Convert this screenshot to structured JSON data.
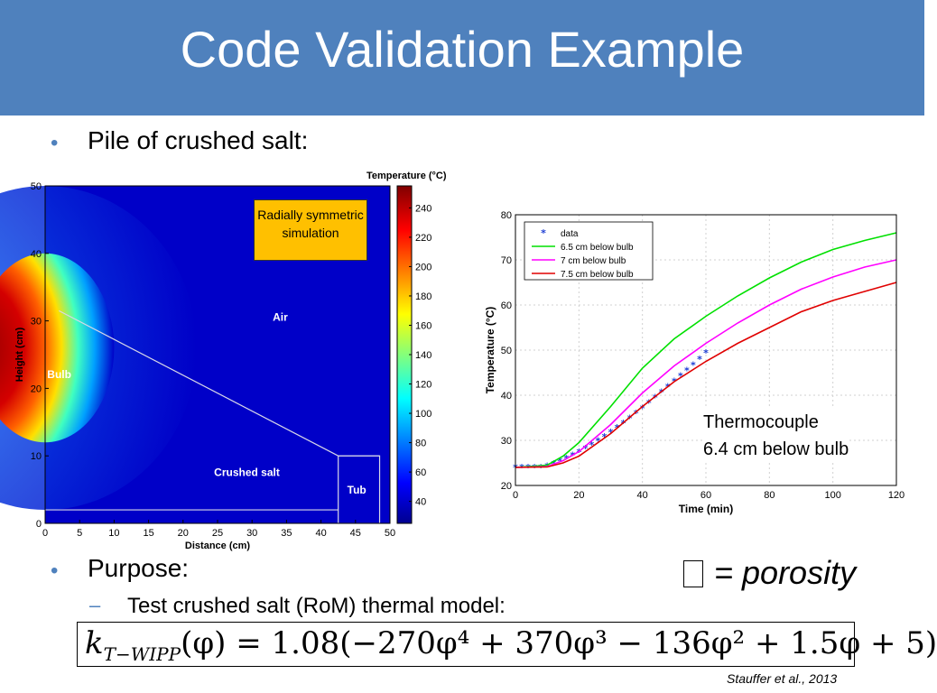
{
  "slide": {
    "title": "Code Validation Example",
    "bullet1": "Pile of crushed salt:",
    "bullet2": "Purpose:",
    "sub_bullet": "Test crushed salt (RoM) thermal model:",
    "sub_dash": "–",
    "bullet_glyph": "•",
    "porosity_note": "= porosity",
    "formula": {
      "lhs": "k",
      "lhs_sub": "T−WIPP",
      "text": "(φ) = 1.08(−270φ⁴ + 370φ³ − 136φ² + 1.5φ + 5)"
    },
    "citation": "Stauffer et al., 2013",
    "colors": {
      "title_bar": "#4f81bd",
      "bullet": "#4f81bd",
      "callout": "#ffc000"
    }
  },
  "heatmap": {
    "type": "heatmap",
    "xlabel": "Distance (cm)",
    "ylabel": "Height (cm)",
    "xlim": [
      0,
      50
    ],
    "ylim": [
      0,
      50
    ],
    "xticks": [
      "0",
      "5",
      "10",
      "15",
      "20",
      "25",
      "30",
      "35",
      "40",
      "45",
      "50"
    ],
    "yticks": [
      "0",
      "10",
      "20",
      "30",
      "40",
      "50"
    ],
    "colorbar_title": "Temperature (°C)",
    "colorbar_range": [
      25,
      255
    ],
    "colorbar_ticks": [
      "40",
      "60",
      "80",
      "100",
      "120",
      "140",
      "160",
      "180",
      "200",
      "220",
      "240"
    ],
    "region_labels": {
      "air": "Air",
      "bulb": "Bulb",
      "crushed_salt": "Crushed salt",
      "tub": "Tub"
    },
    "callout": "Radially symmetric simulation"
  },
  "chart_data": {
    "type": "line",
    "xlabel": "Time (min)",
    "ylabel": "Temperature (°C)",
    "xlim": [
      0,
      120
    ],
    "ylim": [
      20,
      80
    ],
    "xticks": [
      "0",
      "20",
      "40",
      "60",
      "80",
      "100",
      "120"
    ],
    "yticks": [
      "20",
      "30",
      "40",
      "50",
      "60",
      "70",
      "80"
    ],
    "grid": true,
    "legend": "top-left",
    "series": [
      {
        "name": "data",
        "style": "markers",
        "color": "#1f3fd4",
        "x": [
          0,
          2,
          4,
          6,
          8,
          10,
          12,
          14,
          16,
          18,
          20,
          22,
          24,
          26,
          28,
          30,
          32,
          34,
          36,
          38,
          40,
          42,
          44,
          46,
          48,
          50,
          52,
          54,
          56,
          58,
          60
        ],
        "y": [
          24,
          24,
          24,
          24,
          24,
          24.3,
          24.8,
          25.4,
          26.0,
          26.7,
          27.4,
          28.2,
          29.0,
          29.9,
          30.8,
          31.8,
          32.8,
          33.8,
          34.9,
          36.0,
          37.1,
          38.3,
          39.5,
          40.7,
          41.9,
          43.1,
          44.3,
          45.5,
          46.7,
          48.0,
          49.4
        ]
      },
      {
        "name": "6.5 cm below bulb",
        "style": "line",
        "color": "#00e000",
        "x": [
          0,
          10,
          15,
          20,
          30,
          40,
          50,
          60,
          70,
          80,
          90,
          100,
          110,
          120
        ],
        "y": [
          24,
          24.5,
          26.5,
          29.5,
          37.5,
          46,
          52.5,
          57.5,
          62,
          66,
          69.5,
          72.3,
          74.3,
          76
        ]
      },
      {
        "name": "7 cm below bulb",
        "style": "line",
        "color": "#ff00ff",
        "x": [
          0,
          10,
          15,
          20,
          30,
          40,
          50,
          60,
          70,
          80,
          90,
          100,
          110,
          120
        ],
        "y": [
          24,
          24.2,
          25.5,
          27.5,
          33.5,
          40.5,
          46.5,
          51.5,
          56,
          60,
          63.5,
          66.2,
          68.4,
          70
        ]
      },
      {
        "name": "7.5 cm below bulb",
        "style": "line",
        "color": "#e00000",
        "x": [
          0,
          10,
          15,
          20,
          30,
          40,
          50,
          60,
          70,
          80,
          90,
          100,
          110,
          120
        ],
        "y": [
          24,
          24.1,
          25,
          26.5,
          31.5,
          37.5,
          43,
          47.5,
          51.5,
          55,
          58.5,
          61,
          63,
          65
        ]
      }
    ],
    "annotation": "Thermocouple\n6.4 cm below bulb"
  }
}
